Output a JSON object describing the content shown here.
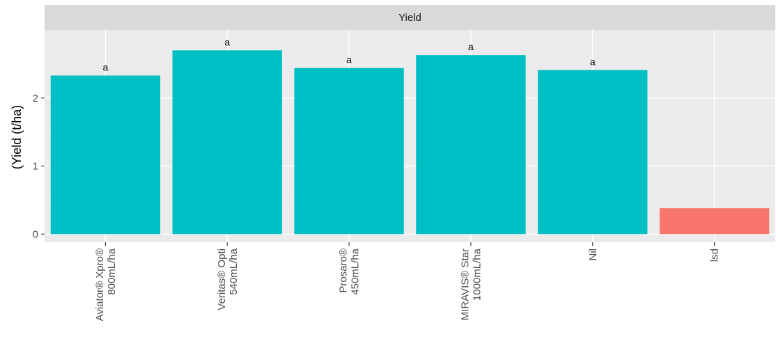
{
  "chart_data": {
    "type": "bar",
    "facet_title": "Yield",
    "ylabel": "(Yield (t/ha)",
    "xlabel": "",
    "categories": [
      [
        "Aviator® Xpro®",
        "800mL/ha"
      ],
      [
        "Veritas® Opti",
        "540mL/ha"
      ],
      [
        "Prosaro®",
        "450mL/ha"
      ],
      [
        "MIRAVIS® Star",
        "1000mL/ha"
      ],
      [
        "Nil"
      ],
      [
        "lsd"
      ]
    ],
    "values": [
      2.33,
      2.7,
      2.44,
      2.63,
      2.41,
      0.38
    ],
    "bar_labels": [
      "a",
      "a",
      "a",
      "a",
      "a",
      ""
    ],
    "bar_colors": [
      "#00BFC4",
      "#00BFC4",
      "#00BFC4",
      "#00BFC4",
      "#00BFC4",
      "#F8766D"
    ],
    "ylim": [
      -0.12,
      3.0
    ],
    "yticks": [
      0,
      1,
      2
    ],
    "grid": true,
    "legend": "none",
    "colors": {
      "panel_bg": "#EBEBEB",
      "strip_bg": "#D9D9D9",
      "grid_major": "#FFFFFF",
      "grid_minor": "#F5F5F5"
    }
  }
}
